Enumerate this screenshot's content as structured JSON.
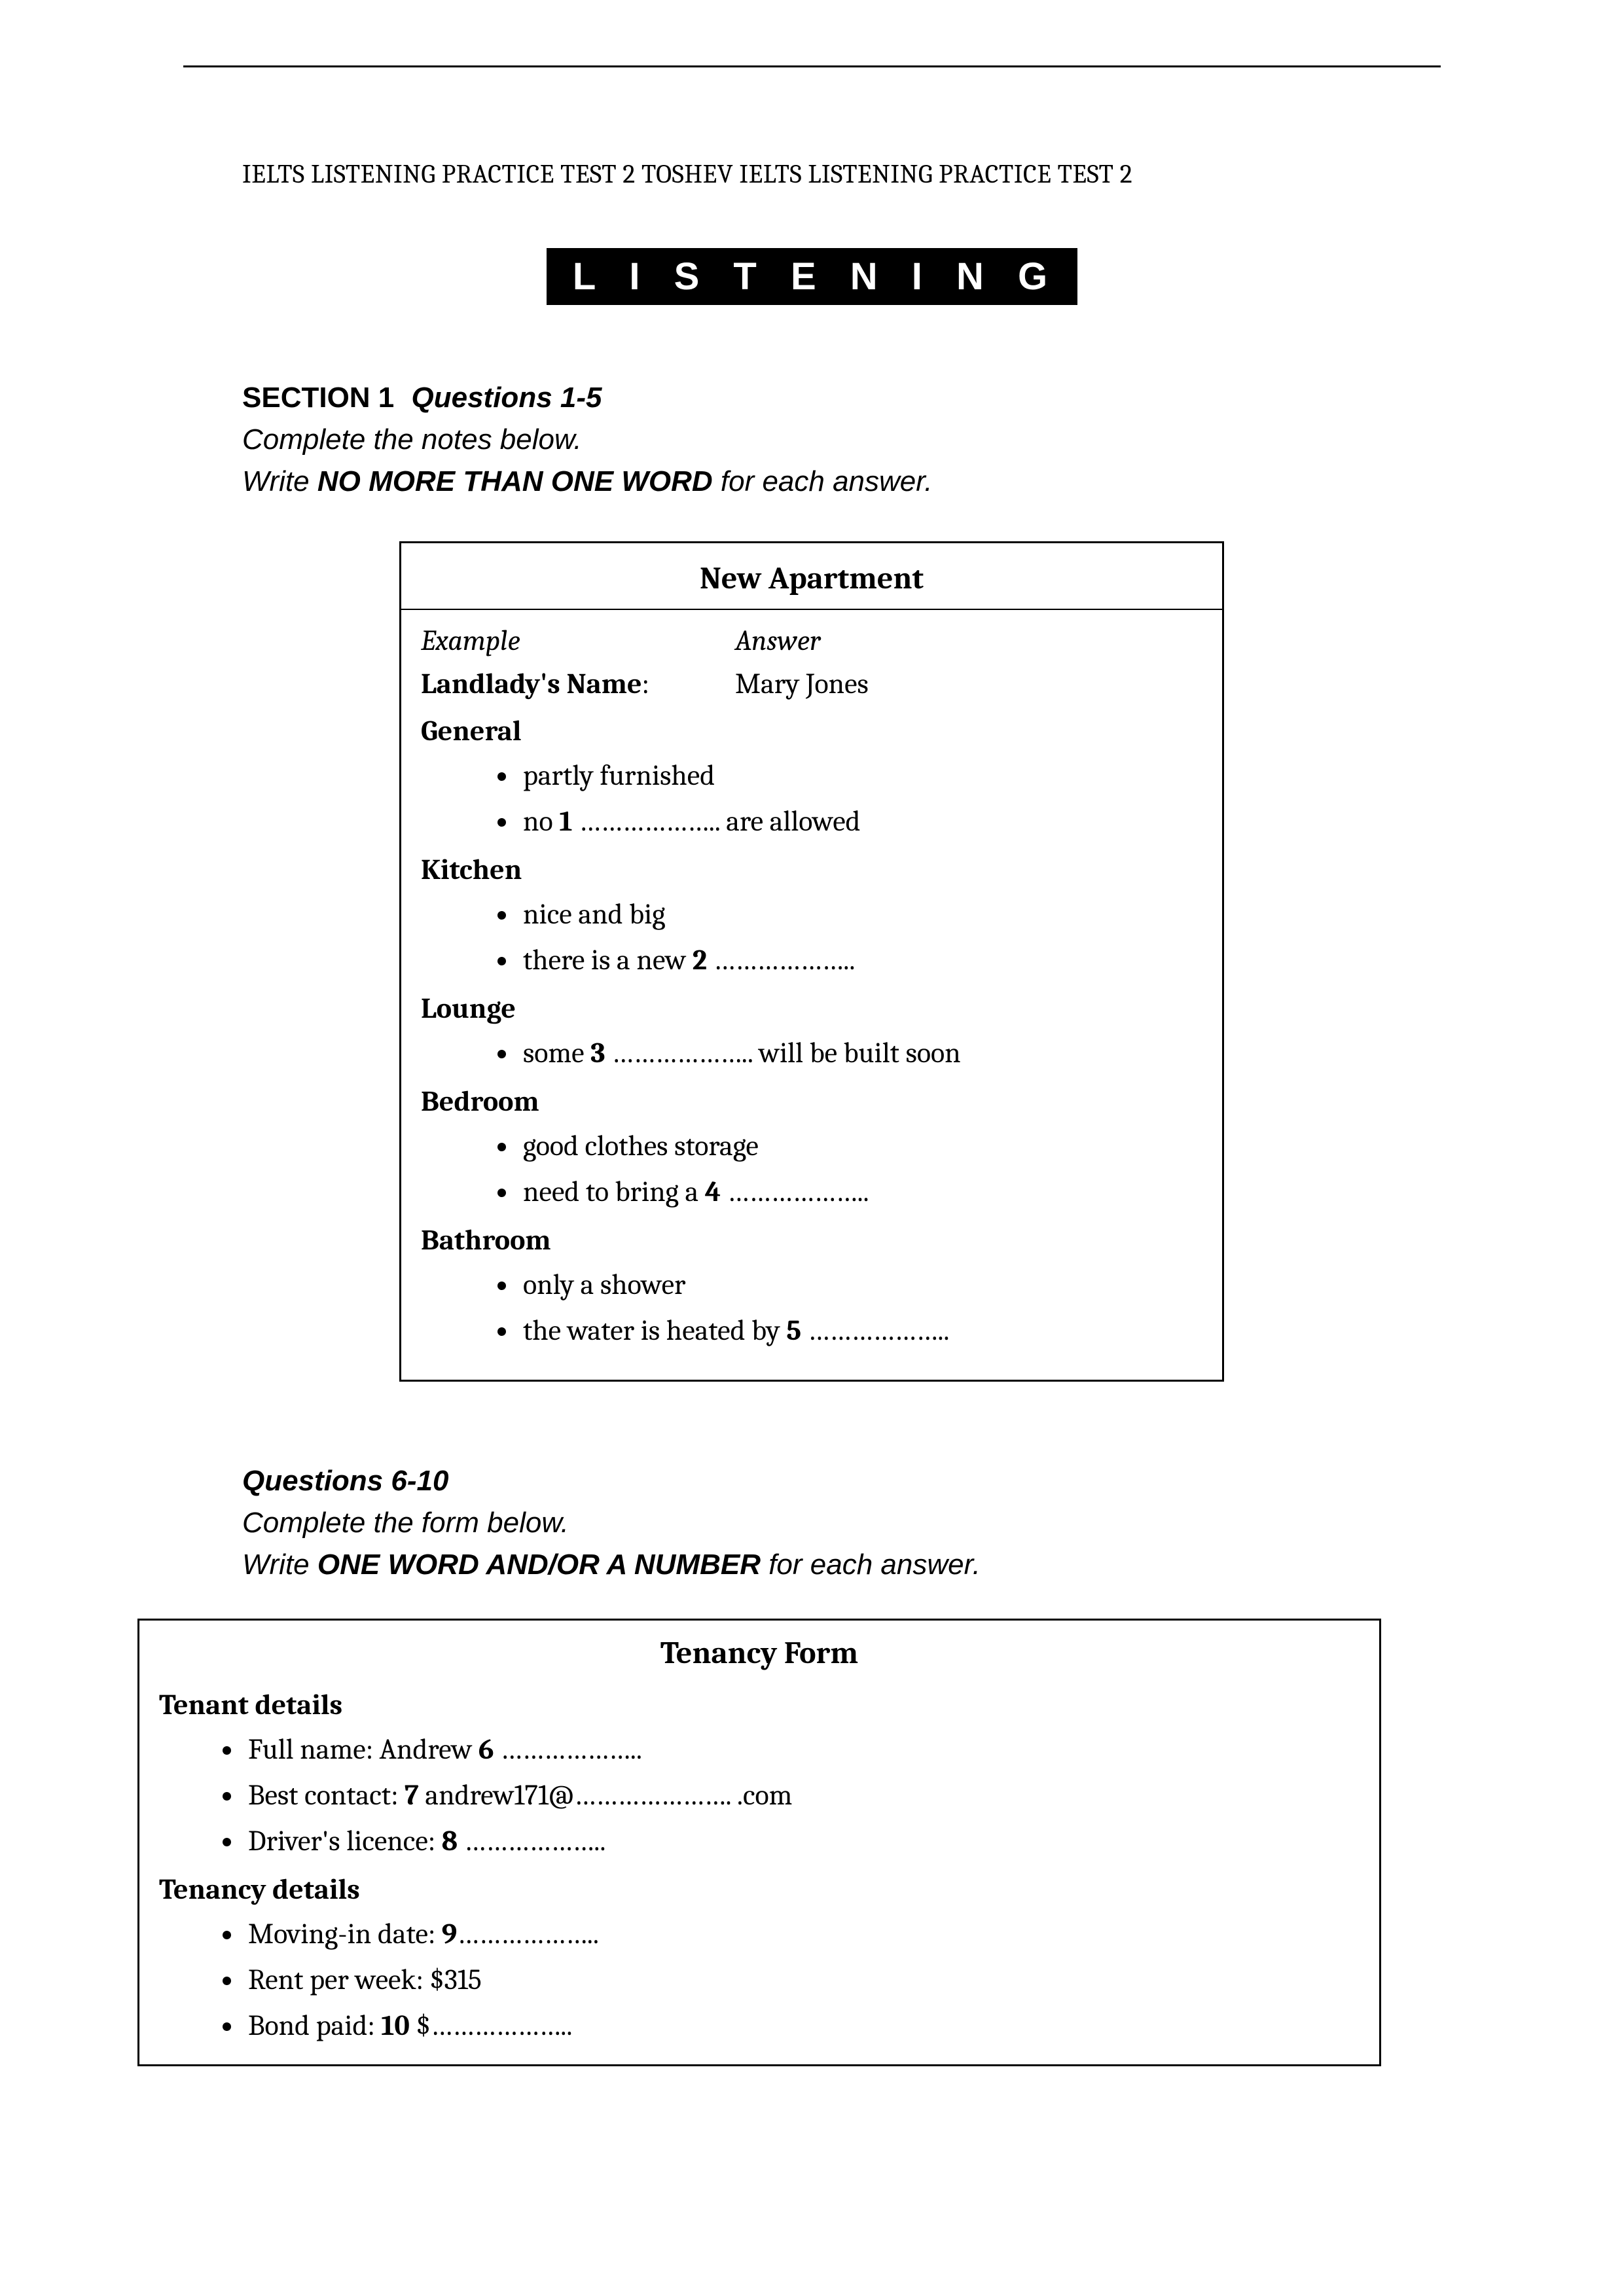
{
  "header": "IELTS LISTENING PRACTICE TEST 2 TOSHEV IELTS LISTENING PRACTICE TEST 2",
  "banner": "L I S T E N I N G",
  "section1": {
    "label": "SECTION 1",
    "range": "Questions 1-5",
    "instr_line1": "Complete the notes below.",
    "instr_prefix": "Write ",
    "instr_emph": "NO MORE THAN ONE WORD",
    "instr_suffix": " for each answer."
  },
  "box1": {
    "title": "New Apartment",
    "example_label": "Example",
    "answer_label": "Answer",
    "landlady_label": "Landlady's Name",
    "landlady_value": "Mary Jones",
    "general": {
      "head": "General",
      "b1": "partly furnished",
      "b2_pre": "no ",
      "b2_num": "1",
      "b2_blank": " ……………….. ",
      "b2_post": "are allowed"
    },
    "kitchen": {
      "head": "Kitchen",
      "b1": "nice and big",
      "b2_pre": "there is a new ",
      "b2_num": "2",
      "b2_blank": " ……………….."
    },
    "lounge": {
      "head": "Lounge",
      "b1_pre": "some ",
      "b1_num": "3",
      "b1_blank": " ……………….. ",
      "b1_post": "will be built soon"
    },
    "bedroom": {
      "head": "Bedroom",
      "b1": "good clothes storage",
      "b2_pre": "need to bring a ",
      "b2_num": "4",
      "b2_blank": " ……………….."
    },
    "bathroom": {
      "head": "Bathroom",
      "b1": "only a shower",
      "b2_pre": "the water is heated by ",
      "b2_num": "5",
      "b2_blank": " ……………….."
    }
  },
  "section2": {
    "range": "Questions 6-10",
    "instr_line1": "Complete the form below.",
    "instr_prefix": "Write ",
    "instr_emph": "ONE WORD AND/OR A NUMBER",
    "instr_suffix": " for each answer."
  },
  "box2": {
    "title": "Tenancy Form",
    "tenant_head": "Tenant details",
    "t1_pre": "Full name: Andrew ",
    "t1_num": "6",
    "t1_blank": " ………………..",
    "t2_pre": "Best contact: ",
    "t2_num": "7",
    "t2_mid": " andrew171@…………………. .com",
    "t3_pre": "Driver's licence: ",
    "t3_num": "8",
    "t3_blank": " ………………..",
    "tenancy_head": "Tenancy details",
    "d1_pre": "Moving-in date: ",
    "d1_num": "9",
    "d1_blank": "………………..",
    "d2": "Rent per week: $315",
    "d3_pre": "Bond paid: ",
    "d3_num": "10",
    "d3_blank": " $……………….."
  }
}
